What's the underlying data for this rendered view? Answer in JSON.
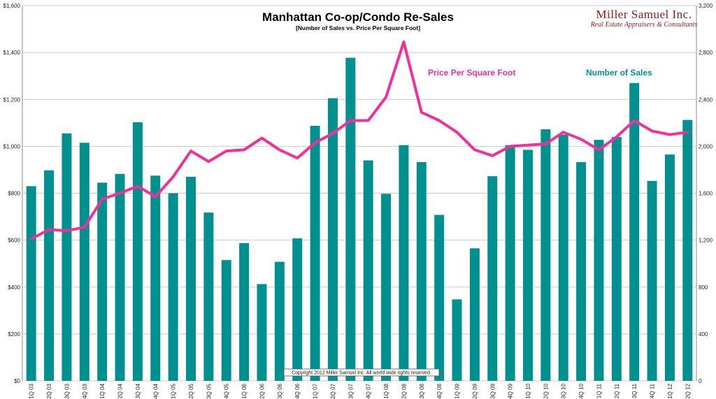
{
  "chart_data": {
    "type": "bar",
    "title": "Manhattan Co-op/Condo Re-Sales",
    "subtitle": "[Number of Sales vs. Price Per Square Foot]",
    "categories": [
      "1Q 03",
      "2Q 03",
      "3Q 03",
      "4Q 03",
      "1Q 04",
      "2Q 04",
      "3Q 04",
      "4Q 04",
      "1Q 05",
      "2Q 05",
      "3Q 05",
      "4Q 05",
      "1Q 06",
      "2Q 06",
      "3Q 06",
      "4Q 06",
      "1Q 07",
      "2Q 07",
      "3Q 07",
      "4Q 07",
      "1Q 08",
      "2Q 08",
      "3Q 08",
      "4Q 08",
      "1Q 09",
      "2Q 09",
      "3Q 09",
      "4Q 09",
      "1Q 10",
      "2Q 10",
      "3Q 10",
      "4Q 10",
      "1Q 11",
      "2Q 11",
      "3Q 11",
      "4Q 11",
      "1Q 12",
      "2Q 12"
    ],
    "series": [
      {
        "name": "Number of Sales",
        "axis": "right",
        "kind": "bar",
        "color": "#009090",
        "values": [
          1660,
          1795,
          2110,
          2030,
          1690,
          1765,
          2205,
          1750,
          1600,
          1740,
          1435,
          1030,
          1175,
          825,
          1015,
          1215,
          2175,
          2410,
          2755,
          1880,
          1595,
          2010,
          1865,
          1415,
          695,
          1130,
          1745,
          2010,
          1970,
          2145,
          2100,
          1865,
          2055,
          2080,
          2540,
          1705,
          1930,
          2225
        ]
      },
      {
        "name": "Price Per Square Foot",
        "axis": "left",
        "kind": "line",
        "color": "#f0319a",
        "values": [
          605,
          645,
          640,
          655,
          775,
          800,
          830,
          785,
          870,
          980,
          935,
          980,
          985,
          1035,
          985,
          950,
          1015,
          1055,
          1110,
          1110,
          1210,
          1445,
          1145,
          1110,
          1060,
          985,
          960,
          1000,
          1005,
          1010,
          1060,
          1030,
          985,
          1040,
          1110,
          1065,
          1050,
          1060
        ]
      }
    ],
    "y_left": {
      "min": 0,
      "max": 1600,
      "ticks": [
        "$0",
        "$200",
        "$400",
        "$600",
        "$800",
        "$1,000",
        "$1,200",
        "$1,400",
        "$1,600"
      ]
    },
    "y_right": {
      "min": 0,
      "max": 3200,
      "ticks": [
        "0",
        "400",
        "800",
        "1,200",
        "1,600",
        "2,000",
        "2,400",
        "2,800",
        "3,200"
      ]
    },
    "grid": true,
    "legend": "inline labels at top-right"
  },
  "branding": {
    "logo_name": "Miller Samuel Inc.",
    "logo_tagline": "Real Estate Appraisers & Consultants"
  },
  "labels": {
    "ppsf_label": "Price Per Square Foot",
    "sales_label": "Number of Sales"
  },
  "copyright": "Copyright 2012 Miller Samuel Inc.  All world wide rights reserved."
}
